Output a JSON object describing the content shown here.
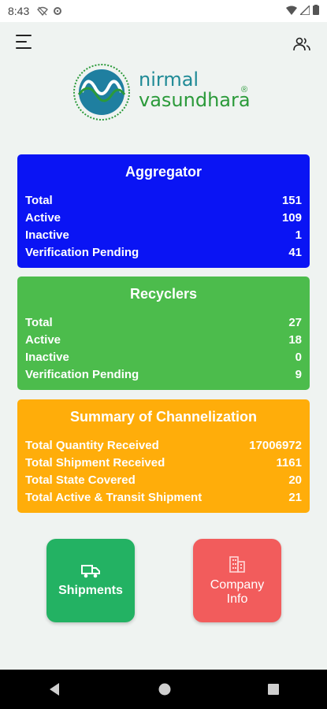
{
  "status_bar": {
    "time": "8:43"
  },
  "brand": {
    "line1": "nirmal",
    "line2": "vasundhara",
    "reg": "®"
  },
  "aggregator": {
    "title": "Aggregator",
    "rows": [
      {
        "label": "Total",
        "value": "151"
      },
      {
        "label": "Active",
        "value": "109"
      },
      {
        "label": "Inactive",
        "value": "1"
      },
      {
        "label": "Verification Pending",
        "value": "41"
      }
    ]
  },
  "recyclers": {
    "title": "Recyclers",
    "rows": [
      {
        "label": "Total",
        "value": "27"
      },
      {
        "label": "Active",
        "value": "18"
      },
      {
        "label": "Inactive",
        "value": "0"
      },
      {
        "label": "Verification Pending",
        "value": "9"
      }
    ]
  },
  "summary": {
    "title": "Summary of Channelization",
    "rows": [
      {
        "label": "Total Quantity Received",
        "value": "17006972"
      },
      {
        "label": "Total Shipment Received",
        "value": "1161"
      },
      {
        "label": "Total State Covered",
        "value": "20"
      },
      {
        "label": "Total Active & Transit Shipment",
        "value": "21"
      }
    ]
  },
  "tiles": {
    "shipments": "Shipments",
    "company_info": "Company Info"
  },
  "colors": {
    "aggregator": "#0a14f4",
    "recyclers": "#4cbc4c",
    "summary": "#ffad0a",
    "shipments": "#23b263",
    "company_info": "#f25c5c"
  },
  "icons": {
    "menu": "hamburger-menu-icon",
    "profile": "people-icon",
    "shipments": "truck-icon",
    "company": "building-icon"
  }
}
